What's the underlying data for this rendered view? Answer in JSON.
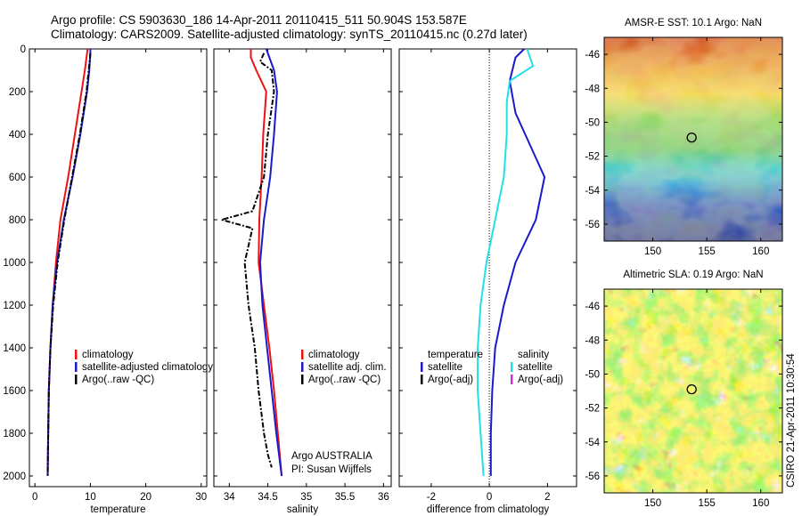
{
  "header": {
    "line1": "Argo profile: CS 5903630_186 14-Apr-2011 20110415_511 50.904S 153.587E",
    "line2": "Climatology: CARS2009. Satellite-adjusted climatology: synTS_20110415.nc (0.27d later)"
  },
  "colors": {
    "climatology": "#ee1111",
    "satellite": "#1a1acc",
    "argo": "#000000",
    "sat_salinity": "#22e0e8",
    "argo_adj_salinity": "#cc33cc"
  },
  "chart_data": [
    {
      "type": "line",
      "title": "",
      "xlabel": "temperature",
      "ylabel": "",
      "xlim": [
        -1,
        31
      ],
      "ylim": [
        2050,
        0
      ],
      "y_reversed": true,
      "xticks": [
        0,
        10,
        20,
        30
      ],
      "yticks": [
        0,
        200,
        400,
        600,
        800,
        1000,
        1200,
        1400,
        1600,
        1800,
        2000
      ],
      "legend": {
        "placement": "lower-right",
        "entries": [
          {
            "label": "climatology",
            "color": "#ee1111"
          },
          {
            "label": "satellite-adjusted climatology",
            "color": "#1a1acc"
          },
          {
            "label": "Argo(..raw -QC)",
            "color": "#000000"
          }
        ]
      },
      "series": [
        {
          "name": "climatology",
          "color": "#ee1111",
          "dash": "",
          "x": [
            9.5,
            9.4,
            9.0,
            8.4,
            7.2,
            6.0,
            4.6,
            3.8,
            3.2,
            2.8,
            2.5,
            2.4,
            2.3
          ],
          "y": [
            0,
            20,
            100,
            200,
            400,
            600,
            800,
            1000,
            1200,
            1400,
            1600,
            1800,
            2000
          ]
        },
        {
          "name": "satellite-adjusted climatology",
          "color": "#1a1acc",
          "dash": "",
          "x": [
            10.0,
            10.0,
            9.8,
            9.4,
            8.2,
            6.8,
            5.2,
            4.0,
            3.2,
            2.8,
            2.5,
            2.4,
            2.3
          ],
          "y": [
            0,
            20,
            100,
            200,
            400,
            600,
            800,
            1000,
            1200,
            1400,
            1600,
            1800,
            2000
          ]
        },
        {
          "name": "Argo(..raw -QC)",
          "color": "#000000",
          "dash": "6,2,2,2",
          "x": [
            10.0,
            9.9,
            9.7,
            9.3,
            8.1,
            6.7,
            5.3,
            4.1,
            3.3,
            2.8,
            2.5,
            2.4,
            2.3
          ],
          "y": [
            20,
            50,
            100,
            200,
            400,
            600,
            800,
            1000,
            1200,
            1400,
            1600,
            1800,
            2000
          ]
        }
      ]
    },
    {
      "type": "line",
      "title": "",
      "xlabel": "salinity",
      "ylabel": "",
      "xlim": [
        33.8,
        36.1
      ],
      "ylim": [
        2050,
        0
      ],
      "y_reversed": true,
      "xticks": [
        34,
        34.5,
        35,
        35.5,
        36
      ],
      "legend": {
        "placement": "lower-right",
        "entries": [
          {
            "label": "climatology",
            "color": "#ee1111"
          },
          {
            "label": "satellite adj. clim.",
            "color": "#1a1acc"
          },
          {
            "label": "Argo(..raw -QC)",
            "color": "#000000"
          }
        ]
      },
      "annotation": {
        "line1": "Argo AUSTRALIA",
        "line2": "PI: Susan Wijffels"
      },
      "series": [
        {
          "name": "climatology",
          "color": "#ee1111",
          "dash": "",
          "x": [
            34.28,
            34.28,
            34.35,
            34.48,
            34.44,
            34.42,
            34.39,
            34.38,
            34.45,
            34.52,
            34.58,
            34.63,
            34.68
          ],
          "y": [
            0,
            40,
            100,
            200,
            400,
            600,
            800,
            1000,
            1200,
            1400,
            1600,
            1800,
            2000
          ]
        },
        {
          "name": "satellite adj. clim.",
          "color": "#1a1acc",
          "dash": "",
          "x": [
            34.48,
            34.52,
            34.58,
            34.62,
            34.58,
            34.53,
            34.45,
            34.4,
            34.43,
            34.49,
            34.55,
            34.61,
            34.68
          ],
          "y": [
            0,
            40,
            100,
            200,
            400,
            600,
            800,
            1000,
            1200,
            1400,
            1600,
            1800,
            2000
          ]
        },
        {
          "name": "Argo(..raw -QC)",
          "color": "#000000",
          "dash": "6,2,2,2",
          "x": [
            34.45,
            34.4,
            34.55,
            34.58,
            34.5,
            34.45,
            34.3,
            33.9,
            34.3,
            34.2,
            34.25,
            34.33,
            34.38,
            34.45,
            34.5,
            34.55
          ],
          "y": [
            20,
            60,
            100,
            200,
            400,
            600,
            760,
            800,
            840,
            1000,
            1200,
            1400,
            1600,
            1800,
            1900,
            1960
          ]
        }
      ]
    },
    {
      "type": "line",
      "title": "",
      "xlabel": "difference from climatology",
      "ylabel": "",
      "xlim": [
        -3.1,
        3.0
      ],
      "ylim": [
        2050,
        0
      ],
      "y_reversed": true,
      "xticks": [
        -2,
        0,
        2
      ],
      "zero_line": 0,
      "legend": {
        "placement": "lower",
        "columns": [
          {
            "title": "temperature",
            "entries": [
              {
                "label": "satellite",
                "color": "#1a1acc"
              },
              {
                "label": "Argo(-adj)",
                "color": "#000000"
              }
            ]
          },
          {
            "title": "salinity",
            "entries": [
              {
                "label": "satellite",
                "color": "#22e0e8"
              },
              {
                "label": "Argo(-adj)",
                "color": "#cc33cc"
              }
            ]
          }
        ]
      },
      "series": [
        {
          "name": "temperature satellite",
          "color": "#1a1acc",
          "dash": "",
          "x": [
            1.2,
            0.9,
            0.7,
            0.9,
            1.4,
            1.9,
            1.6,
            0.9,
            0.5,
            0.2,
            0.1,
            0.05,
            0.05
          ],
          "y": [
            0,
            40,
            150,
            300,
            450,
            600,
            800,
            1000,
            1200,
            1400,
            1600,
            1800,
            2000
          ]
        },
        {
          "name": "salinity satellite",
          "color": "#22e0e8",
          "dash": "",
          "x": [
            1.3,
            1.5,
            0.7,
            0.6,
            0.6,
            0.5,
            0.2,
            -0.1,
            -0.3,
            -0.4,
            -0.4,
            -0.3,
            -0.2
          ],
          "y": [
            0,
            80,
            150,
            250,
            400,
            600,
            800,
            1000,
            1200,
            1400,
            1600,
            1800,
            2000
          ]
        }
      ]
    },
    {
      "type": "heatmap",
      "title": "AMSR-E SST: 10.1 Argo: NaN",
      "xlim": [
        145.5,
        162
      ],
      "ylim": [
        -57,
        -45
      ],
      "xticks": [
        150,
        155,
        160
      ],
      "yticks": [
        -46,
        -48,
        -50,
        -52,
        -54,
        -56
      ],
      "marker": {
        "lon": 153.6,
        "lat": -50.9
      }
    },
    {
      "type": "heatmap",
      "title": "Altimetric SLA: 0.19 Argo: NaN",
      "xlim": [
        145.5,
        162
      ],
      "ylim": [
        -57,
        -45
      ],
      "xticks": [
        150,
        155,
        160
      ],
      "yticks": [
        -46,
        -48,
        -50,
        -52,
        -54,
        -56
      ],
      "marker": {
        "lon": 153.6,
        "lat": -50.9
      }
    }
  ],
  "side_label": "CSIRO 21-Apr-2011 10:30:54"
}
